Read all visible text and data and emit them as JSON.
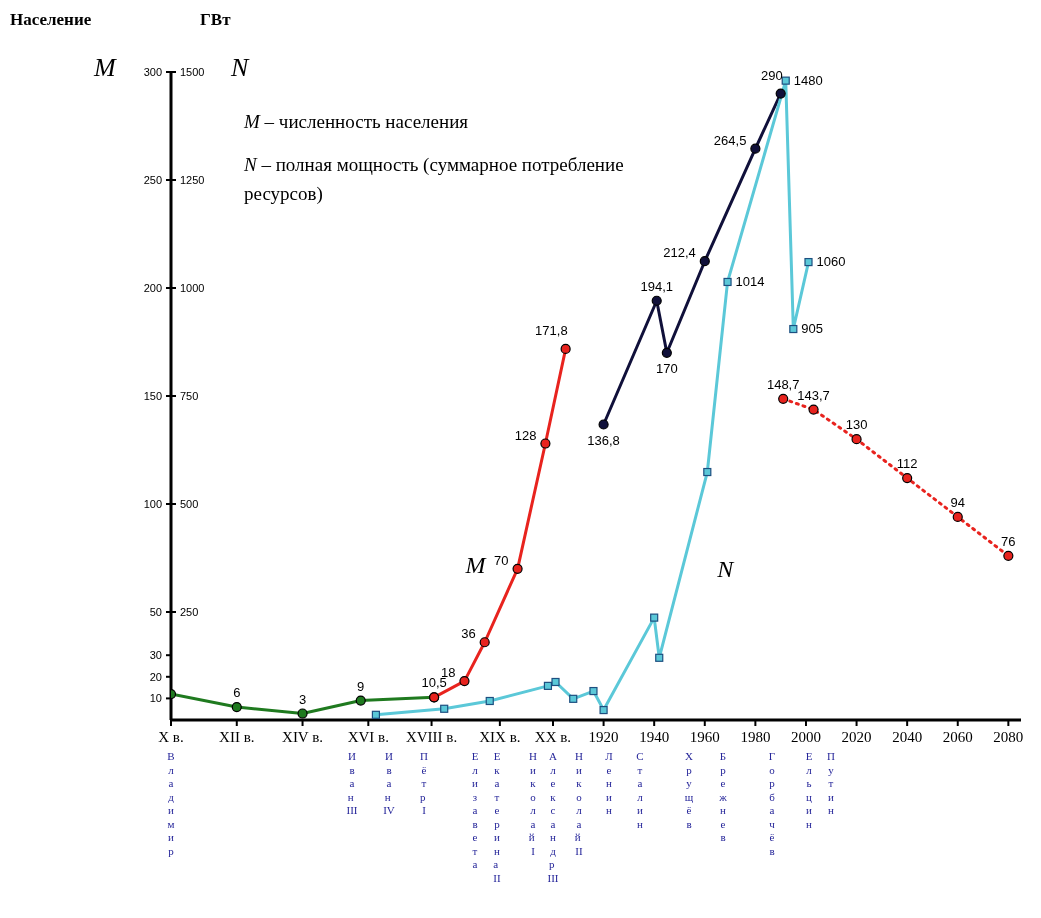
{
  "chart_data": {
    "type": "line",
    "ylabel": "Население",
    "y2label": "ГВт",
    "annotations": [
      "M",
      "N",
      "M – численность населения",
      "N – полная мощность (суммарное потребление ресурсов)",
      "Владимир",
      "Иван III",
      "Иван IV",
      "Пётр I",
      "Елизавета",
      "Екатерина II",
      "Николай I",
      "Александр III",
      "Николай II",
      "Ленин",
      "Сталин",
      "Хрущёв",
      "Брежнев",
      "Горбачёв",
      "Ельцин",
      "Путин"
    ],
    "xlim": [
      1749,
      2085
    ],
    "xticks": [
      {
        "value": 1749,
        "label": "X в."
      },
      {
        "value": 1775,
        "label": "XII в."
      },
      {
        "value": 1801,
        "label": "XIV в."
      },
      {
        "value": 1827,
        "label": "XVI в."
      },
      {
        "value": 1852,
        "label": "XVIII в."
      },
      {
        "value": 1879,
        "label": "XIX в."
      },
      {
        "value": 1900,
        "label": "XX в."
      },
      1920,
      1940,
      1960,
      1980,
      2000,
      2020,
      2040,
      2060,
      2080
    ],
    "ylim": [
      0,
      300
    ],
    "yticks": [
      10,
      20,
      30,
      50,
      100,
      150,
      200,
      250,
      300
    ],
    "y2lim": [
      0,
      1500
    ],
    "y2ticks": [
      250,
      500,
      750,
      1000,
      1250,
      1500
    ],
    "marker": "circle",
    "line_style": "solid",
    "series": [
      {
        "color": "#1f7a1f",
        "x": [
          1749,
          1775,
          1801,
          1824,
          1853
        ],
        "values": [
          12,
          6,
          3,
          9,
          10.5
        ],
        "value_labels": [
          null,
          "6",
          "3",
          "9",
          "10,5"
        ]
      },
      {
        "name": "M",
        "color": "#e8231e",
        "x": [
          1853,
          1865,
          1873,
          1886,
          1897,
          1905
        ],
        "values": [
          10.5,
          18,
          36,
          70,
          128,
          171.8
        ],
        "value_labels": [
          null,
          "18",
          "36",
          "70",
          "128",
          "171,8"
        ]
      },
      {
        "color": "#10103a",
        "x": [
          1920,
          1941,
          1945,
          1960,
          1980,
          1990
        ],
        "values": [
          136.8,
          194.1,
          170,
          212.4,
          264.5,
          290
        ],
        "value_labels": [
          "136,8",
          "194,1",
          "170",
          "212,4",
          "264,5",
          "290"
        ]
      },
      {
        "color": "#e8231e",
        "line_style": "dotted",
        "x": [
          1991,
          2003,
          2020,
          2040,
          2060,
          2080
        ],
        "values": [
          148.7,
          143.7,
          130,
          112,
          94,
          76
        ],
        "value_labels": [
          "148,7",
          "143,7",
          "130",
          "112",
          "94",
          "76"
        ]
      },
      {
        "name": "N",
        "color": "#5bc8d8",
        "axis": "y2",
        "marker": "square",
        "x": [
          1830,
          1857,
          1875,
          1898,
          1901,
          1908,
          1916,
          1920,
          1940,
          1942,
          1961,
          1969,
          1992,
          1995,
          2001
        ],
        "values": [
          12,
          26,
          44,
          79,
          88,
          49,
          67,
          23,
          237,
          144,
          574,
          1014,
          1480,
          905,
          1060
        ],
        "value_labels": [
          null,
          null,
          null,
          null,
          null,
          null,
          null,
          null,
          null,
          null,
          null,
          "1014",
          "1480",
          "905",
          "1060"
        ]
      }
    ]
  }
}
